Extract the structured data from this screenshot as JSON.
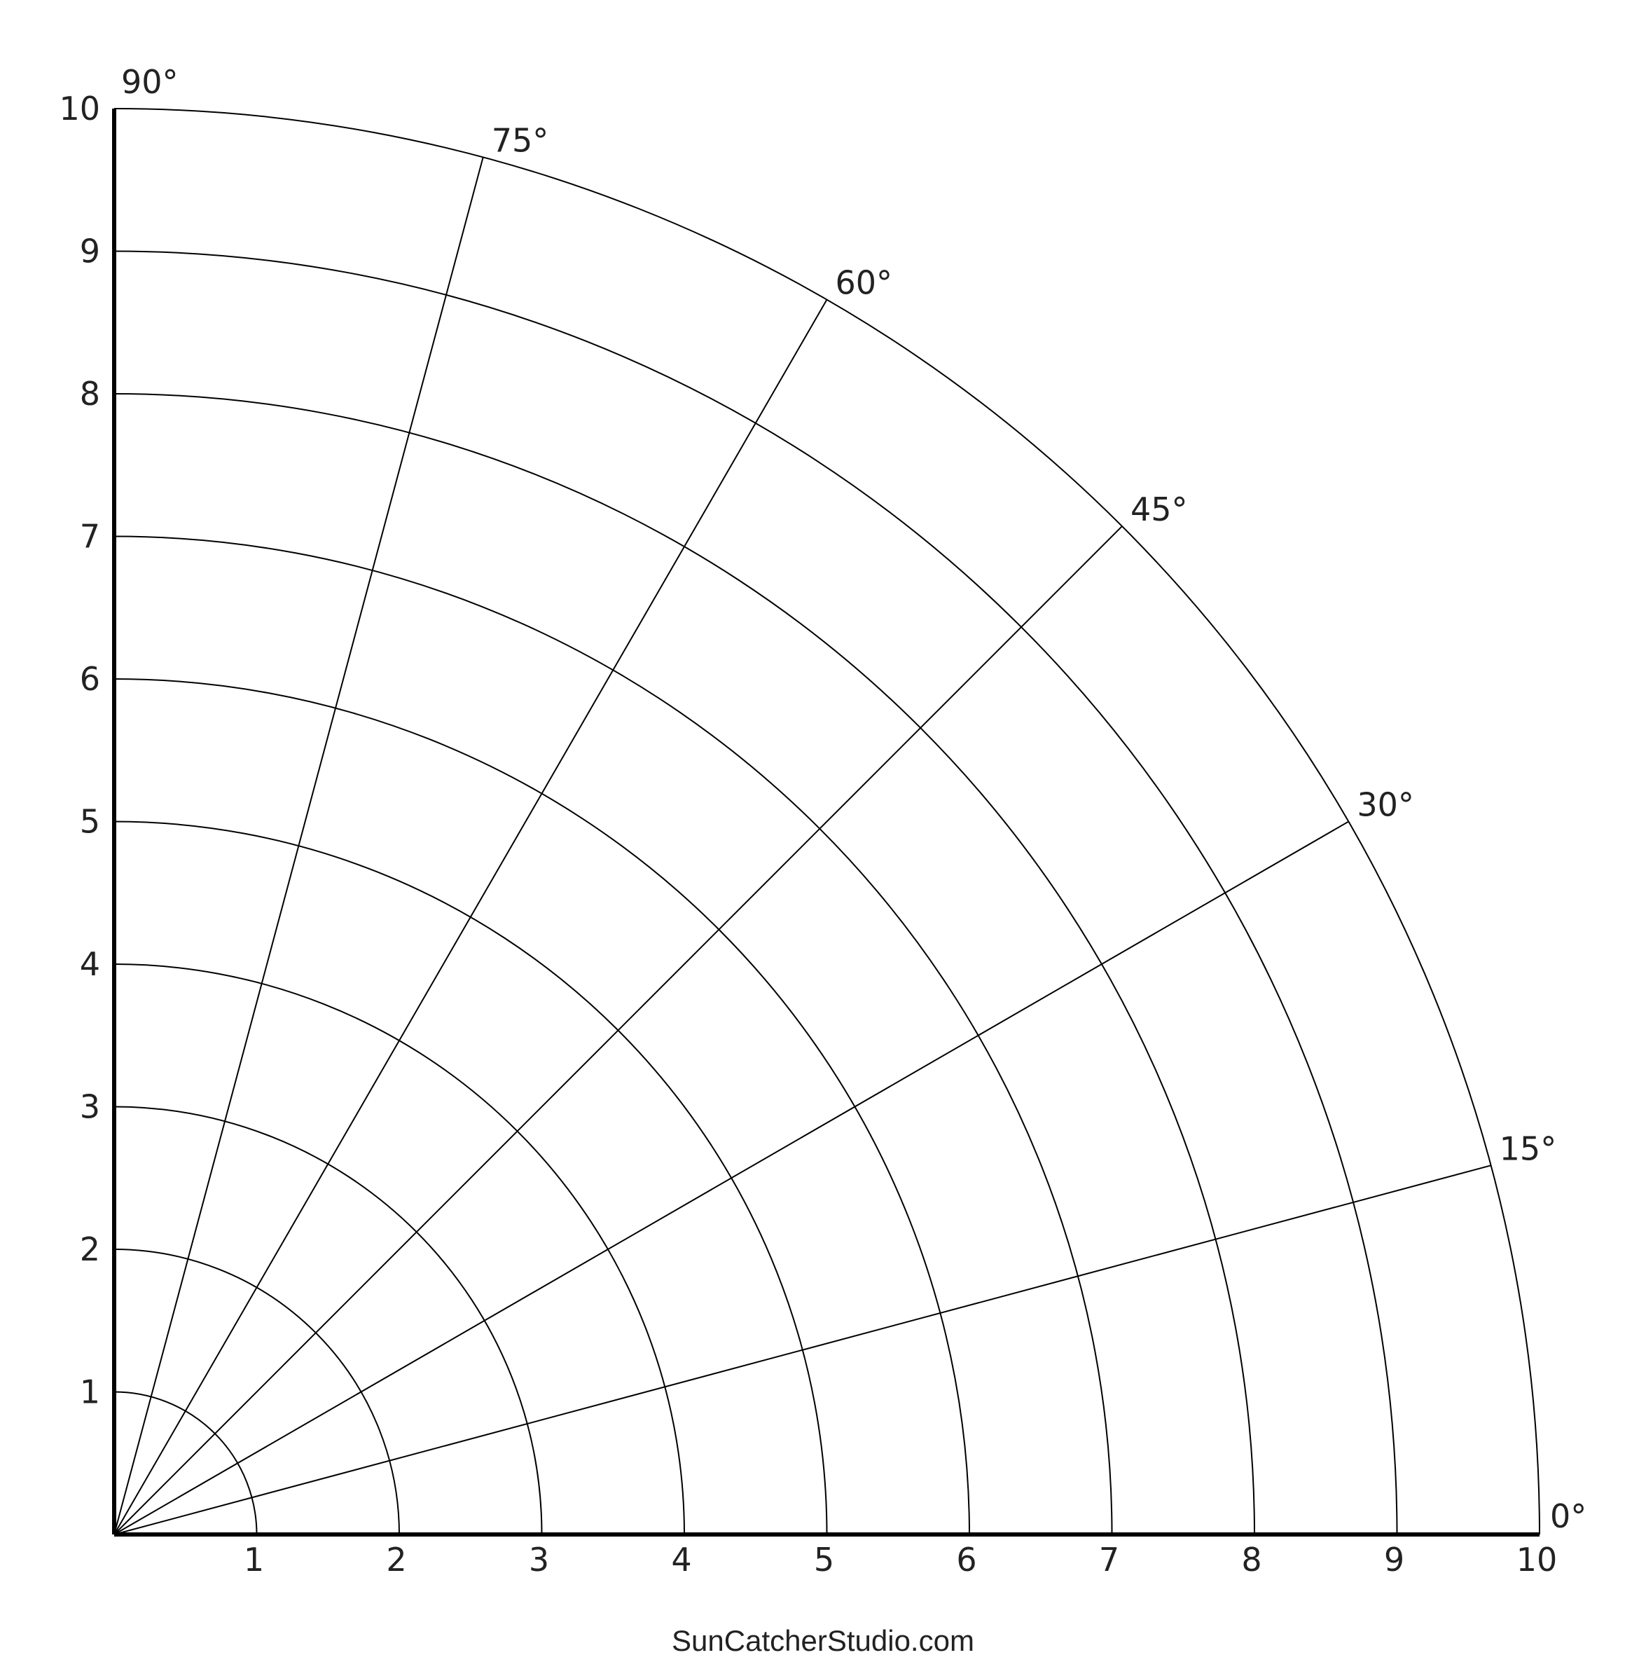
{
  "diagram": {
    "type": "polar-grid-quadrant",
    "radial_max": 10,
    "radial_ticks": [
      "1",
      "2",
      "3",
      "4",
      "5",
      "6",
      "7",
      "8",
      "9",
      "10"
    ],
    "angle_labels": [
      "0°",
      "15°",
      "30°",
      "45°",
      "60°",
      "75°",
      "90°"
    ],
    "angles_deg": [
      0,
      15,
      30,
      45,
      60,
      75,
      90
    ],
    "line_color": "#000000",
    "text_color": "#222222"
  },
  "footer": {
    "credit": "SunCatcherStudio.com"
  }
}
